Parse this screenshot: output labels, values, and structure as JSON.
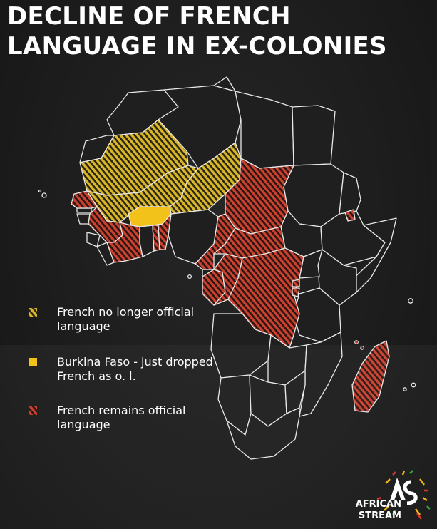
{
  "title": {
    "line1": "DECLINE OF FRENCH",
    "line2": "LANGUAGE IN EX-COLONIES"
  },
  "colors": {
    "french_no_longer": "#d9b62a",
    "burkina_faso": "#f2c21a",
    "french_remains": "#c9412f",
    "outline": "#e8e8e8",
    "background": "#1d1d1d"
  },
  "legend": [
    {
      "key": "no_longer",
      "pattern": "hatch-yellow",
      "label": "French no longer official language"
    },
    {
      "key": "burkina",
      "pattern": "solid-yellow",
      "label": "Burkina Faso - just dropped French as o. l."
    },
    {
      "key": "remains",
      "pattern": "hatch-red",
      "label": "French remains official language"
    }
  ],
  "logo": {
    "line1": "AFRICAN",
    "line2": "STREAM",
    "mark": "AS"
  },
  "regions": {
    "french_no_longer": [
      "Mauritania",
      "Mali",
      "Niger"
    ],
    "just_dropped": [
      "Burkina Faso"
    ],
    "french_remains": [
      "Senegal",
      "Guinea",
      "Côte d'Ivoire",
      "Togo",
      "Benin",
      "Chad",
      "Cameroon",
      "Central African Republic",
      "Gabon",
      "Republic of the Congo",
      "DR Congo",
      "Rwanda",
      "Burundi",
      "Djibouti",
      "Madagascar",
      "Comoros"
    ]
  }
}
